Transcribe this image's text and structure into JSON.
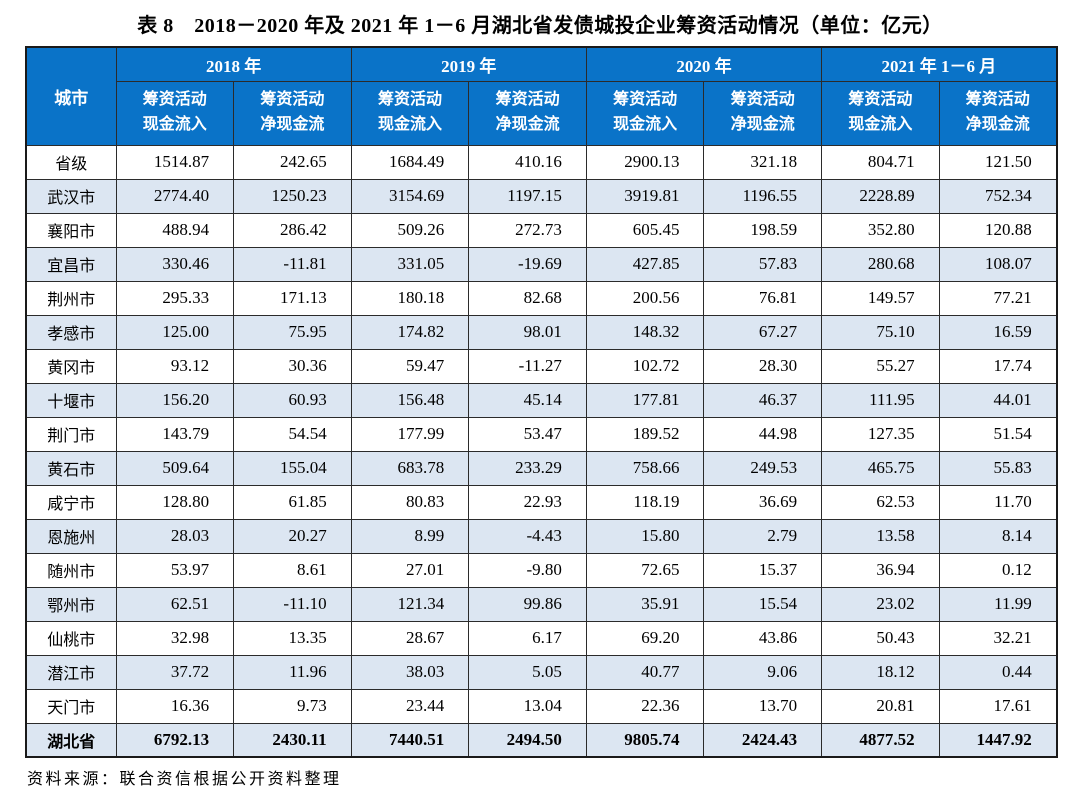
{
  "title": "表 8　2018－2020 年及 2021 年 1－6 月湖北省发债城投企业筹资活动情况（单位：亿元）",
  "source": "资料来源：联合资信根据公开资料整理",
  "colors": {
    "header_background": "#0a73c8",
    "header_text": "#ffffff",
    "alternate_row_background": "#dce6f2",
    "border": "#2b2b2b"
  },
  "table": {
    "city_header": "城市",
    "year_groups": [
      "2018 年",
      "2019 年",
      "2020 年",
      "2021 年 1－6 月"
    ],
    "sub_headers": [
      "筹资活动\n现金流入",
      "筹资活动\n净现金流"
    ],
    "rows": [
      {
        "city": "省级",
        "values": [
          "1514.87",
          "242.65",
          "1684.49",
          "410.16",
          "2900.13",
          "321.18",
          "804.71",
          "121.50"
        ],
        "bold": false
      },
      {
        "city": "武汉市",
        "values": [
          "2774.40",
          "1250.23",
          "3154.69",
          "1197.15",
          "3919.81",
          "1196.55",
          "2228.89",
          "752.34"
        ],
        "bold": false
      },
      {
        "city": "襄阳市",
        "values": [
          "488.94",
          "286.42",
          "509.26",
          "272.73",
          "605.45",
          "198.59",
          "352.80",
          "120.88"
        ],
        "bold": false
      },
      {
        "city": "宜昌市",
        "values": [
          "330.46",
          "-11.81",
          "331.05",
          "-19.69",
          "427.85",
          "57.83",
          "280.68",
          "108.07"
        ],
        "bold": false
      },
      {
        "city": "荆州市",
        "values": [
          "295.33",
          "171.13",
          "180.18",
          "82.68",
          "200.56",
          "76.81",
          "149.57",
          "77.21"
        ],
        "bold": false
      },
      {
        "city": "孝感市",
        "values": [
          "125.00",
          "75.95",
          "174.82",
          "98.01",
          "148.32",
          "67.27",
          "75.10",
          "16.59"
        ],
        "bold": false
      },
      {
        "city": "黄冈市",
        "values": [
          "93.12",
          "30.36",
          "59.47",
          "-11.27",
          "102.72",
          "28.30",
          "55.27",
          "17.74"
        ],
        "bold": false
      },
      {
        "city": "十堰市",
        "values": [
          "156.20",
          "60.93",
          "156.48",
          "45.14",
          "177.81",
          "46.37",
          "111.95",
          "44.01"
        ],
        "bold": false
      },
      {
        "city": "荆门市",
        "values": [
          "143.79",
          "54.54",
          "177.99",
          "53.47",
          "189.52",
          "44.98",
          "127.35",
          "51.54"
        ],
        "bold": false
      },
      {
        "city": "黄石市",
        "values": [
          "509.64",
          "155.04",
          "683.78",
          "233.29",
          "758.66",
          "249.53",
          "465.75",
          "55.83"
        ],
        "bold": false
      },
      {
        "city": "咸宁市",
        "values": [
          "128.80",
          "61.85",
          "80.83",
          "22.93",
          "118.19",
          "36.69",
          "62.53",
          "11.70"
        ],
        "bold": false
      },
      {
        "city": "恩施州",
        "values": [
          "28.03",
          "20.27",
          "8.99",
          "-4.43",
          "15.80",
          "2.79",
          "13.58",
          "8.14"
        ],
        "bold": false
      },
      {
        "city": "随州市",
        "values": [
          "53.97",
          "8.61",
          "27.01",
          "-9.80",
          "72.65",
          "15.37",
          "36.94",
          "0.12"
        ],
        "bold": false
      },
      {
        "city": "鄂州市",
        "values": [
          "62.51",
          "-11.10",
          "121.34",
          "99.86",
          "35.91",
          "15.54",
          "23.02",
          "11.99"
        ],
        "bold": false
      },
      {
        "city": "仙桃市",
        "values": [
          "32.98",
          "13.35",
          "28.67",
          "6.17",
          "69.20",
          "43.86",
          "50.43",
          "32.21"
        ],
        "bold": false
      },
      {
        "city": "潜江市",
        "values": [
          "37.72",
          "11.96",
          "38.03",
          "5.05",
          "40.77",
          "9.06",
          "18.12",
          "0.44"
        ],
        "bold": false
      },
      {
        "city": "天门市",
        "values": [
          "16.36",
          "9.73",
          "23.44",
          "13.04",
          "22.36",
          "13.70",
          "20.81",
          "17.61"
        ],
        "bold": false
      },
      {
        "city": "湖北省",
        "values": [
          "6792.13",
          "2430.11",
          "7440.51",
          "2494.50",
          "9805.74",
          "2424.43",
          "4877.52",
          "1447.92"
        ],
        "bold": true
      }
    ]
  }
}
